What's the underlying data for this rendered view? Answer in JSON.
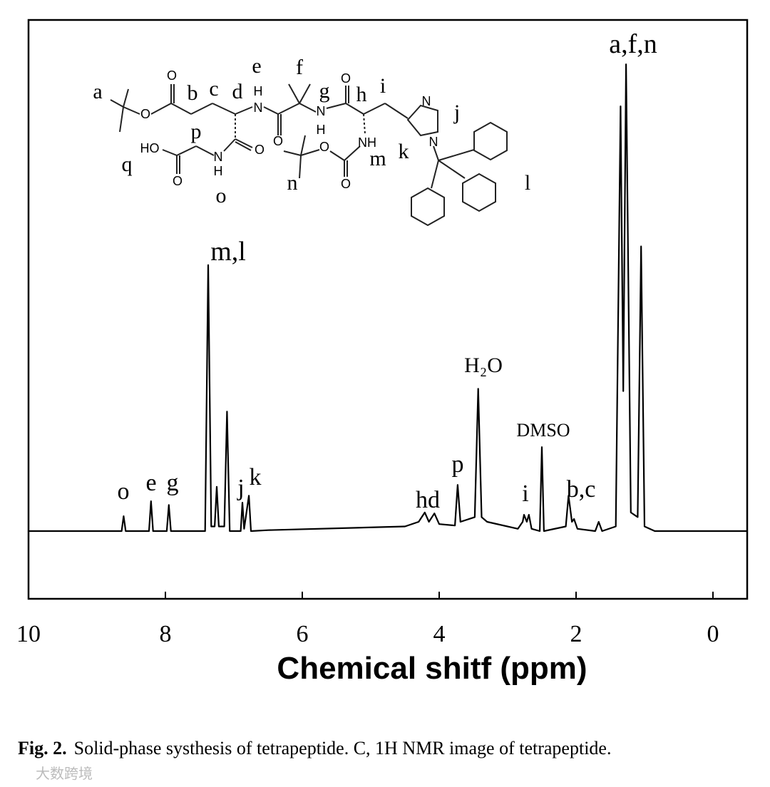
{
  "chart_data": {
    "type": "line",
    "xlabel": "Chemical shitf (ppm)",
    "xlim": [
      10,
      -0.5
    ],
    "xticks": [
      10,
      8,
      6,
      4,
      2,
      0
    ],
    "ylim": [
      -0.145,
      1.095
    ],
    "series": [
      {
        "color": "#000000",
        "x": [
          10,
          8.9,
          8.64,
          8.61,
          8.58,
          8.24,
          8.21,
          8.18,
          7.98,
          7.95,
          7.92,
          7.42,
          7.375,
          7.33,
          7.28,
          7.25,
          7.22,
          7.14,
          7.1,
          7.06,
          6.9,
          6.875,
          6.85,
          6.78,
          6.75,
          6.5,
          4.5,
          4.3,
          4.21,
          4.15,
          4.07,
          4.0,
          3.77,
          3.73,
          3.69,
          3.48,
          3.43,
          3.38,
          3.3,
          2.85,
          2.78,
          2.76,
          2.72,
          2.69,
          2.65,
          2.53,
          2.5,
          2.47,
          2.15,
          2.11,
          2.06,
          2.03,
          1.98,
          1.72,
          1.67,
          1.62,
          1.42,
          1.35,
          1.31,
          1.27,
          1.2,
          1.1,
          1.05,
          1.0,
          0.85,
          -0.5
        ],
        "values": [
          0,
          0,
          0,
          0.032,
          0,
          0,
          0.064,
          0,
          0,
          0.056,
          0,
          0,
          0.57,
          0.01,
          0.01,
          0.095,
          0.01,
          0.01,
          0.256,
          0,
          0,
          0.061,
          0.005,
          0.076,
          0,
          0.002,
          0.01,
          0.02,
          0.04,
          0.02,
          0.038,
          0.015,
          0.012,
          0.099,
          0.02,
          0.03,
          0.305,
          0.03,
          0.02,
          0.005,
          0.02,
          0.035,
          0.02,
          0.035,
          0.005,
          0,
          0.18,
          0,
          0.01,
          0.076,
          0.02,
          0.026,
          0.005,
          0,
          0.02,
          0,
          0.01,
          0.91,
          0.3,
          1.0,
          0.04,
          0.03,
          0.61,
          0.01,
          0,
          0
        ]
      }
    ],
    "annotations": [
      "o",
      "e",
      "g",
      "m,l",
      "j",
      "k",
      "hd",
      "p",
      "H₂O",
      "DMSO",
      "i",
      "b,c",
      "a,f,n"
    ]
  },
  "structure": {
    "labels": [
      "a",
      "b",
      "c",
      "d",
      "e",
      "f",
      "g",
      "h",
      "i",
      "j",
      "k",
      "l",
      "m",
      "n",
      "o",
      "p",
      "q"
    ],
    "atoms": [
      "O",
      "O",
      "H",
      "N",
      "O",
      "N",
      "H",
      "O",
      "N",
      "N",
      "NH",
      "O",
      "O",
      "HO",
      "O",
      "N",
      "H",
      "O"
    ]
  },
  "caption": {
    "label": "Fig. 2.",
    "text": "Solid-phase systhesis of tetrapeptide. C, 1H NMR image of tetrapeptide."
  },
  "watermark": "大数跨境"
}
